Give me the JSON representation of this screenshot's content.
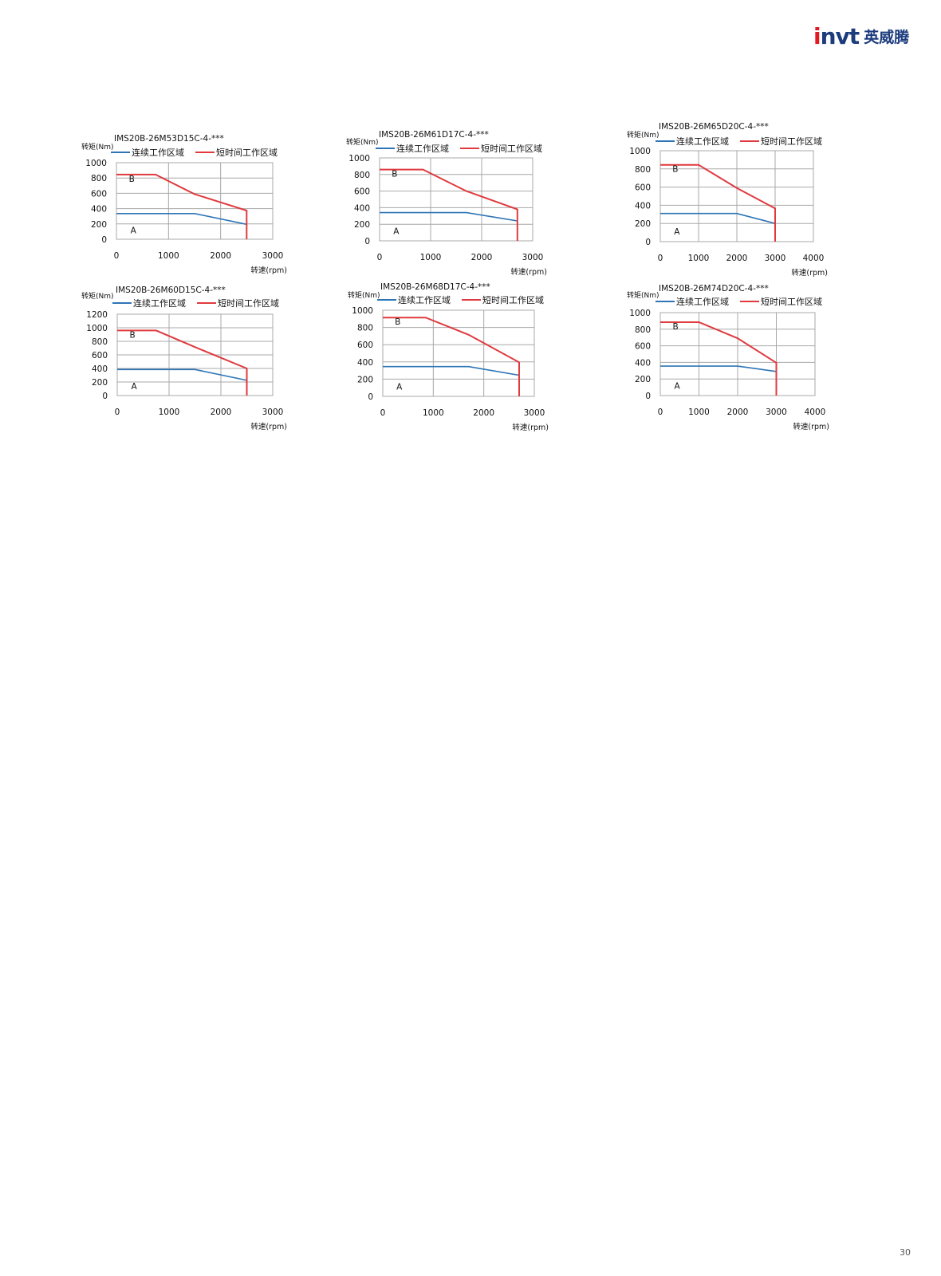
{
  "brand": {
    "logo_text": "invt",
    "logo_cn": "英威腾"
  },
  "page_number": "30",
  "chart_data": [
    {
      "type": "line",
      "title": "IMS20B-26M53D15C-4-***",
      "ylabel": "转矩(Nm)",
      "xlabel": "转速(rpm)",
      "xlim": [
        0,
        3000
      ],
      "ylim": [
        0,
        1000
      ],
      "xticks": [
        0,
        1000,
        2000,
        3000
      ],
      "yticks": [
        0,
        200,
        400,
        600,
        800,
        1000
      ],
      "grid": true,
      "legend": "top",
      "region_labels": [
        "A",
        "B"
      ],
      "series": [
        {
          "name": "连续工作区域",
          "color": "#2e75b6",
          "x": [
            0,
            1500,
            2500
          ],
          "y": [
            335,
            335,
            195
          ]
        },
        {
          "name": "短时间工作区域",
          "color": "#e03a3e",
          "x": [
            0,
            750,
            1500,
            2500,
            2500
          ],
          "y": [
            845,
            845,
            590,
            375,
            0
          ]
        }
      ]
    },
    {
      "type": "line",
      "title": "IMS20B-26M61D17C-4-***",
      "ylabel": "转矩(Nm)",
      "xlabel": "转速(rpm)",
      "xlim": [
        0,
        3000
      ],
      "ylim": [
        0,
        1000
      ],
      "xticks": [
        0,
        1000,
        2000,
        3000
      ],
      "yticks": [
        0,
        200,
        400,
        600,
        800,
        1000
      ],
      "grid": true,
      "legend": "top",
      "region_labels": [
        "A",
        "B"
      ],
      "series": [
        {
          "name": "连续工作区域",
          "color": "#2e75b6",
          "x": [
            0,
            1700,
            2700
          ],
          "y": [
            340,
            340,
            240
          ]
        },
        {
          "name": "短时间工作区域",
          "color": "#e03a3e",
          "x": [
            0,
            850,
            1700,
            2700,
            2700
          ],
          "y": [
            860,
            860,
            600,
            380,
            0
          ]
        }
      ]
    },
    {
      "type": "line",
      "title": "IMS20B-26M65D20C-4-***",
      "ylabel": "转矩(Nm)",
      "xlabel": "转速(rpm)",
      "xlim": [
        0,
        4000
      ],
      "ylim": [
        0,
        1000
      ],
      "xticks": [
        0,
        1000,
        2000,
        3000,
        4000
      ],
      "yticks": [
        0,
        200,
        400,
        600,
        800,
        1000
      ],
      "grid": true,
      "legend": "top",
      "region_labels": [
        "A",
        "B"
      ],
      "series": [
        {
          "name": "连续工作区域",
          "color": "#2e75b6",
          "x": [
            0,
            2000,
            3000
          ],
          "y": [
            310,
            310,
            200
          ]
        },
        {
          "name": "短时间工作区域",
          "color": "#e03a3e",
          "x": [
            0,
            1000,
            2000,
            3000,
            3000
          ],
          "y": [
            845,
            845,
            590,
            365,
            0
          ]
        }
      ]
    },
    {
      "type": "line",
      "title": "IMS20B-26M60D15C-4-***",
      "ylabel": "转矩(Nm)",
      "xlabel": "转速(rpm)",
      "xlim": [
        0,
        3000
      ],
      "ylim": [
        0,
        1200
      ],
      "xticks": [
        0,
        1000,
        2000,
        3000
      ],
      "yticks": [
        0,
        200,
        400,
        600,
        800,
        1000,
        1200
      ],
      "grid": true,
      "legend": "top",
      "region_labels": [
        "A",
        "B"
      ],
      "series": [
        {
          "name": "连续工作区域",
          "color": "#2e75b6",
          "x": [
            0,
            1500,
            2500
          ],
          "y": [
            385,
            385,
            225
          ]
        },
        {
          "name": "短时间工作区域",
          "color": "#e03a3e",
          "x": [
            0,
            750,
            1500,
            2500,
            2500
          ],
          "y": [
            960,
            960,
            715,
            400,
            0
          ]
        }
      ]
    },
    {
      "type": "line",
      "title": "IMS20B-26M68D17C-4-***",
      "ylabel": "转矩(Nm)",
      "xlabel": "转速(rpm)",
      "xlim": [
        0,
        3000
      ],
      "ylim": [
        0,
        1000
      ],
      "xticks": [
        0,
        1000,
        2000,
        3000
      ],
      "yticks": [
        0,
        200,
        400,
        600,
        800,
        1000
      ],
      "grid": true,
      "legend": "top",
      "region_labels": [
        "A",
        "B"
      ],
      "series": [
        {
          "name": "连续工作区域",
          "color": "#2e75b6",
          "x": [
            0,
            1700,
            2700
          ],
          "y": [
            345,
            345,
            245
          ]
        },
        {
          "name": "短时间工作区域",
          "color": "#e03a3e",
          "x": [
            0,
            850,
            1700,
            2700,
            2700
          ],
          "y": [
            915,
            915,
            715,
            395,
            0
          ]
        }
      ]
    },
    {
      "type": "line",
      "title": "IMS20B-26M74D20C-4-***",
      "ylabel": "转矩(Nm)",
      "xlabel": "转速(rpm)",
      "xlim": [
        0,
        4000
      ],
      "ylim": [
        0,
        1000
      ],
      "xticks": [
        0,
        1000,
        2000,
        3000,
        4000
      ],
      "yticks": [
        0,
        200,
        400,
        600,
        800,
        1000
      ],
      "grid": true,
      "legend": "top",
      "region_labels": [
        "A",
        "B"
      ],
      "series": [
        {
          "name": "连续工作区域",
          "color": "#2e75b6",
          "x": [
            0,
            2000,
            3000
          ],
          "y": [
            355,
            355,
            290
          ]
        },
        {
          "name": "短时间工作区域",
          "color": "#e03a3e",
          "x": [
            0,
            1000,
            2000,
            3000,
            3000
          ],
          "y": [
            885,
            885,
            690,
            395,
            0
          ]
        }
      ]
    }
  ]
}
